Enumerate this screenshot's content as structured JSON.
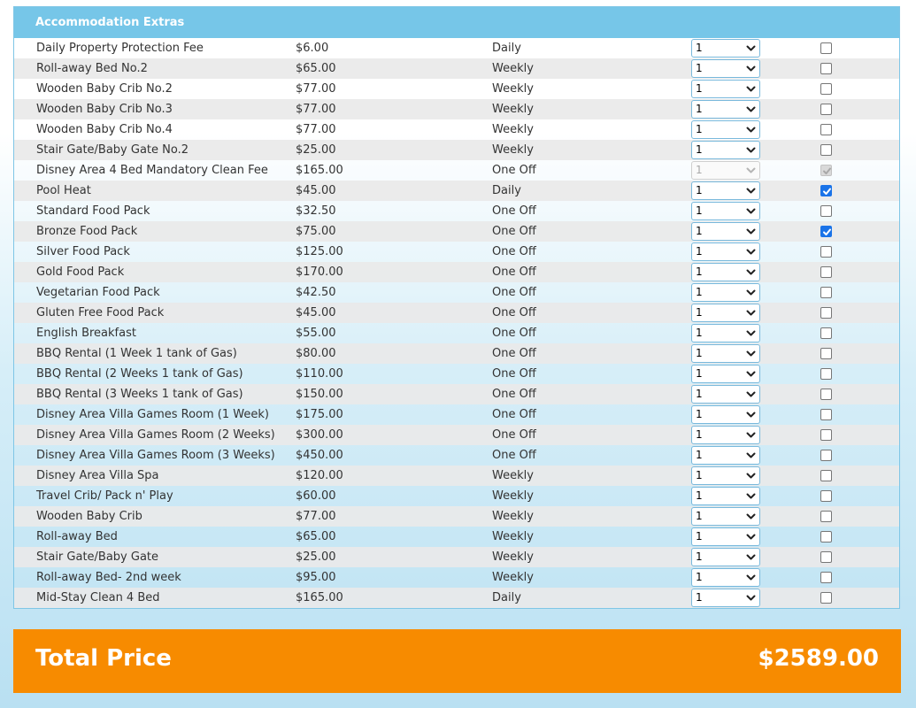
{
  "panel": {
    "title": "Accommodation Extras"
  },
  "rows": [
    {
      "name": "Daily Property Protection Fee",
      "price": "$6.00",
      "frequency": "Daily",
      "qty": "1",
      "checked": false,
      "disabled": false
    },
    {
      "name": "Roll-away Bed No.2",
      "price": "$65.00",
      "frequency": "Weekly",
      "qty": "1",
      "checked": false,
      "disabled": false
    },
    {
      "name": "Wooden Baby Crib No.2",
      "price": "$77.00",
      "frequency": "Weekly",
      "qty": "1",
      "checked": false,
      "disabled": false
    },
    {
      "name": "Wooden Baby Crib No.3",
      "price": "$77.00",
      "frequency": "Weekly",
      "qty": "1",
      "checked": false,
      "disabled": false
    },
    {
      "name": "Wooden Baby Crib No.4",
      "price": "$77.00",
      "frequency": "Weekly",
      "qty": "1",
      "checked": false,
      "disabled": false
    },
    {
      "name": "Stair Gate/Baby Gate No.2",
      "price": "$25.00",
      "frequency": "Weekly",
      "qty": "1",
      "checked": false,
      "disabled": false
    },
    {
      "name": "Disney Area 4 Bed Mandatory Clean Fee",
      "price": "$165.00",
      "frequency": "One Off",
      "qty": "1",
      "checked": true,
      "disabled": true
    },
    {
      "name": "Pool Heat",
      "price": "$45.00",
      "frequency": "Daily",
      "qty": "1",
      "checked": true,
      "disabled": false
    },
    {
      "name": "Standard Food Pack",
      "price": "$32.50",
      "frequency": "One Off",
      "qty": "1",
      "checked": false,
      "disabled": false
    },
    {
      "name": "Bronze Food Pack",
      "price": "$75.00",
      "frequency": "One Off",
      "qty": "1",
      "checked": true,
      "disabled": false
    },
    {
      "name": "Silver Food Pack",
      "price": "$125.00",
      "frequency": "One Off",
      "qty": "1",
      "checked": false,
      "disabled": false
    },
    {
      "name": "Gold Food Pack",
      "price": "$170.00",
      "frequency": "One Off",
      "qty": "1",
      "checked": false,
      "disabled": false
    },
    {
      "name": "Vegetarian Food Pack",
      "price": "$42.50",
      "frequency": "One Off",
      "qty": "1",
      "checked": false,
      "disabled": false
    },
    {
      "name": "Gluten Free Food Pack",
      "price": "$45.00",
      "frequency": "One Off",
      "qty": "1",
      "checked": false,
      "disabled": false
    },
    {
      "name": "English Breakfast",
      "price": "$55.00",
      "frequency": "One Off",
      "qty": "1",
      "checked": false,
      "disabled": false
    },
    {
      "name": "BBQ Rental (1 Week 1 tank of Gas)",
      "price": "$80.00",
      "frequency": "One Off",
      "qty": "1",
      "checked": false,
      "disabled": false
    },
    {
      "name": "BBQ Rental (2 Weeks 1 tank of Gas)",
      "price": "$110.00",
      "frequency": "One Off",
      "qty": "1",
      "checked": false,
      "disabled": false
    },
    {
      "name": "BBQ Rental (3 Weeks 1 tank of Gas)",
      "price": "$150.00",
      "frequency": "One Off",
      "qty": "1",
      "checked": false,
      "disabled": false
    },
    {
      "name": "Disney Area Villa Games Room (1 Week)",
      "price": "$175.00",
      "frequency": "One Off",
      "qty": "1",
      "checked": false,
      "disabled": false
    },
    {
      "name": "Disney Area Villa Games Room (2 Weeks)",
      "price": "$300.00",
      "frequency": "One Off",
      "qty": "1",
      "checked": false,
      "disabled": false
    },
    {
      "name": "Disney Area Villa Games Room (3 Weeks)",
      "price": "$450.00",
      "frequency": "One Off",
      "qty": "1",
      "checked": false,
      "disabled": false
    },
    {
      "name": "Disney Area Villa Spa",
      "price": "$120.00",
      "frequency": "Weekly",
      "qty": "1",
      "checked": false,
      "disabled": false
    },
    {
      "name": "Travel Crib/ Pack n' Play",
      "price": "$60.00",
      "frequency": "Weekly",
      "qty": "1",
      "checked": false,
      "disabled": false
    },
    {
      "name": "Wooden Baby Crib",
      "price": "$77.00",
      "frequency": "Weekly",
      "qty": "1",
      "checked": false,
      "disabled": false
    },
    {
      "name": "Roll-away Bed",
      "price": "$65.00",
      "frequency": "Weekly",
      "qty": "1",
      "checked": false,
      "disabled": false
    },
    {
      "name": "Stair Gate/Baby Gate",
      "price": "$25.00",
      "frequency": "Weekly",
      "qty": "1",
      "checked": false,
      "disabled": false
    },
    {
      "name": "Roll-away Bed- 2nd week",
      "price": "$95.00",
      "frequency": "Weekly",
      "qty": "1",
      "checked": false,
      "disabled": false
    },
    {
      "name": "Mid-Stay Clean 4 Bed",
      "price": "$165.00",
      "frequency": "Daily",
      "qty": "1",
      "checked": false,
      "disabled": false
    }
  ],
  "total": {
    "label": "Total Price",
    "value": "$2589.00"
  },
  "colors": {
    "header": "#76c6e8",
    "total_bar": "#f78b00",
    "checkbox_checked": "#1a73e8"
  },
  "icons": {
    "select_arrow": "chevron-down-icon",
    "check_mark": "check-icon"
  }
}
